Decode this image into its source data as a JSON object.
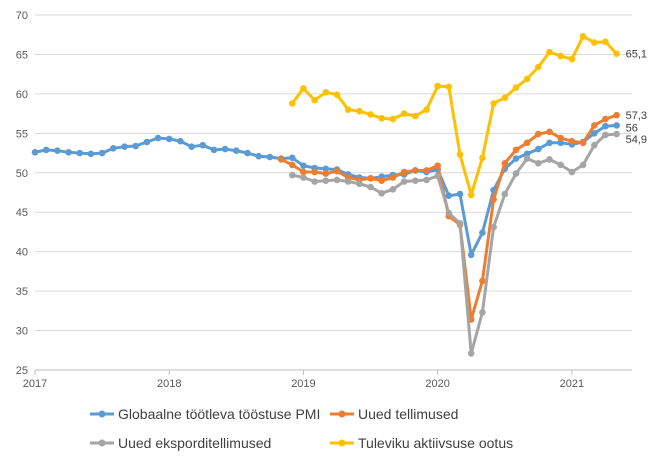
{
  "chart_data": {
    "type": "line",
    "ylim": [
      25,
      70
    ],
    "yticks": [
      25,
      30,
      35,
      40,
      45,
      50,
      55,
      60,
      65,
      70
    ],
    "xtick_labels": [
      "2017",
      "2018",
      "2019",
      "2020",
      "2021"
    ],
    "grid": "horizontal",
    "legend_position": "bottom",
    "series": [
      {
        "name": "Globaalne töötleva tööstuse PMI",
        "color": "#5b9bd5",
        "start": "2017-01",
        "values": [
          52.6,
          52.9,
          52.8,
          52.6,
          52.5,
          52.4,
          52.5,
          53.1,
          53.3,
          53.4,
          53.9,
          54.4,
          54.3,
          54.0,
          53.3,
          53.5,
          52.9,
          53.0,
          52.8,
          52.5,
          52.1,
          52.0,
          51.8,
          51.9,
          50.9,
          50.6,
          50.5,
          50.4,
          49.8,
          49.4,
          49.3,
          49.5,
          49.7,
          49.8,
          50.3,
          50.1,
          50.4,
          47.1,
          47.3,
          39.6,
          42.4,
          47.8,
          50.5,
          51.8,
          52.4,
          53.0,
          53.8,
          53.8,
          53.6,
          53.9,
          55.0,
          55.9,
          56.0
        ],
        "end_label": "56"
      },
      {
        "name": "Uued tellimused",
        "color": "#ed7d31",
        "start": "2018-11",
        "values": [
          51.7,
          51.0,
          50.1,
          50.1,
          49.9,
          50.2,
          49.4,
          49.1,
          49.3,
          49.0,
          49.4,
          50.1,
          50.3,
          50.3,
          50.9,
          44.5,
          43.4,
          31.4,
          36.3,
          46.6,
          51.2,
          52.9,
          53.8,
          54.9,
          55.2,
          54.4,
          54.0,
          53.8,
          56.0,
          56.8,
          57.3
        ],
        "end_label": "57,3"
      },
      {
        "name": "Uued eksporditellimused",
        "color": "#a5a5a5",
        "start": "2018-12",
        "values": [
          49.7,
          49.4,
          48.9,
          49.0,
          49.1,
          48.9,
          48.6,
          48.2,
          47.4,
          47.9,
          48.9,
          49.0,
          49.1,
          49.6,
          44.9,
          43.6,
          27.1,
          32.3,
          43.1,
          47.3,
          49.9,
          51.8,
          51.2,
          51.7,
          51.0,
          50.1,
          51.0,
          53.5,
          54.8,
          54.9
        ],
        "end_label": "54,9"
      },
      {
        "name": "Tuleviku aktiivsuse ootus",
        "color": "#ffc000",
        "start": "2018-12",
        "values": [
          58.8,
          60.7,
          59.2,
          60.2,
          59.9,
          58.0,
          57.8,
          57.4,
          56.9,
          56.8,
          57.5,
          57.2,
          58.0,
          61.0,
          60.9,
          52.3,
          47.2,
          51.9,
          58.8,
          59.5,
          60.8,
          61.9,
          63.4,
          65.3,
          64.8,
          64.4,
          67.3,
          66.5,
          66.6,
          65.1
        ],
        "end_label": "65,1"
      }
    ]
  }
}
